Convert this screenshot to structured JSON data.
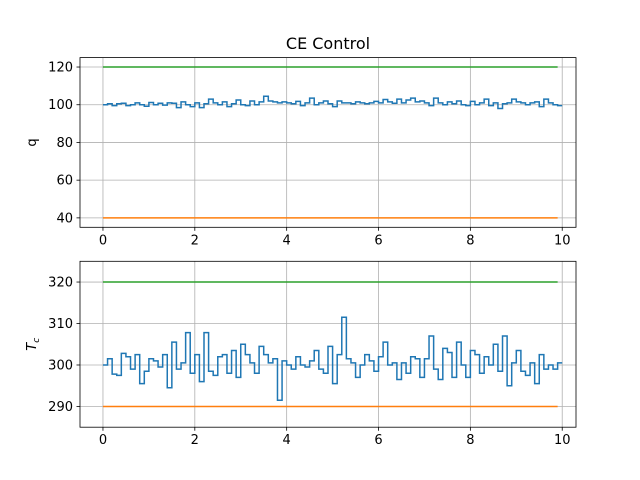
{
  "chart_data": [
    {
      "type": "line",
      "title": "CE Control",
      "xlabel": "",
      "ylabel": "q",
      "xlim": [
        -0.5,
        10.3
      ],
      "ylim": [
        35,
        125
      ],
      "xticks": [
        "0",
        "2",
        "4",
        "6",
        "8",
        "10"
      ],
      "yticks": [
        "40",
        "60",
        "80",
        "100",
        "120"
      ],
      "grid": true,
      "step": true,
      "series": [
        {
          "color": "#1f77b4",
          "x_start": 0,
          "x_step": 0.1,
          "values": [
            100.0,
            100.5,
            99.5,
            100.5,
            100.8,
            99.5,
            100.0,
            101.0,
            100.0,
            99.2,
            101.2,
            100.0,
            100.8,
            99.8,
            101.0,
            100.8,
            98.5,
            101.5,
            100.0,
            99.0,
            101.0,
            98.5,
            100.5,
            103.0,
            101.0,
            100.0,
            101.5,
            99.0,
            100.5,
            102.5,
            100.0,
            99.5,
            102.0,
            100.0,
            101.5,
            104.5,
            102.0,
            101.5,
            101.0,
            101.5,
            101.0,
            100.5,
            101.8,
            99.5,
            101.0,
            103.5,
            100.0,
            101.0,
            102.0,
            100.5,
            99.0,
            102.0,
            101.0,
            101.0,
            100.5,
            101.5,
            101.0,
            100.5,
            101.0,
            101.8,
            101.0,
            102.8,
            101.5,
            100.8,
            103.0,
            101.0,
            102.5,
            103.5,
            101.5,
            102.0,
            101.0,
            99.5,
            103.5,
            101.0,
            100.0,
            101.5,
            100.5,
            102.0,
            100.0,
            99.5,
            101.8,
            100.0,
            101.0,
            103.0,
            99.5,
            101.0,
            98.0,
            100.5,
            101.0,
            103.0,
            101.5,
            101.0,
            100.0,
            101.0,
            101.5,
            99.0,
            103.0,
            101.0,
            100.0,
            99.5
          ]
        },
        {
          "color": "#2ca02c",
          "x_start": 0,
          "x_step": 0.1,
          "constant": 120,
          "count": 99
        },
        {
          "color": "#ff7f0e",
          "x_start": 0,
          "x_step": 0.1,
          "constant": 40,
          "count": 99
        }
      ]
    },
    {
      "type": "line",
      "title": "",
      "xlabel": "",
      "ylabel": "T_c",
      "ylabel_main": "T",
      "ylabel_sub": "c",
      "xlim": [
        -0.5,
        10.3
      ],
      "ylim": [
        285,
        325
      ],
      "xticks": [
        "0",
        "2",
        "4",
        "6",
        "8",
        "10"
      ],
      "yticks": [
        "290",
        "300",
        "310",
        "320"
      ],
      "grid": true,
      "step": true,
      "series": [
        {
          "color": "#1f77b4",
          "x_start": 0,
          "x_step": 0.1,
          "values": [
            300.0,
            301.5,
            297.8,
            297.5,
            302.8,
            302.0,
            299.0,
            302.5,
            295.5,
            298.5,
            301.5,
            301.0,
            299.5,
            302.5,
            294.5,
            305.5,
            299.0,
            300.5,
            307.8,
            298.0,
            302.5,
            296.0,
            307.8,
            298.5,
            297.5,
            302.0,
            302.5,
            298.0,
            303.5,
            297.0,
            305.0,
            302.5,
            300.5,
            298.0,
            304.5,
            302.5,
            300.5,
            301.5,
            291.5,
            301.0,
            300.0,
            299.0,
            302.0,
            300.0,
            299.5,
            301.0,
            303.5,
            299.0,
            298.0,
            304.5,
            295.5,
            302.5,
            311.5,
            301.5,
            300.5,
            297.0,
            300.0,
            302.5,
            301.0,
            298.5,
            302.0,
            305.5,
            300.0,
            300.5,
            296.5,
            300.5,
            298.0,
            302.0,
            301.5,
            297.0,
            301.5,
            307.0,
            299.0,
            296.5,
            304.0,
            303.0,
            297.0,
            305.5,
            300.0,
            297.0,
            303.5,
            302.5,
            298.0,
            302.0,
            300.0,
            305.0,
            298.5,
            307.0,
            295.0,
            300.5,
            303.5,
            298.5,
            297.5,
            300.5,
            295.5,
            302.5,
            299.0,
            300.0,
            299.0,
            300.5
          ]
        },
        {
          "color": "#2ca02c",
          "x_start": 0,
          "x_step": 0.1,
          "constant": 320,
          "count": 99
        },
        {
          "color": "#ff7f0e",
          "x_start": 0,
          "x_step": 0.1,
          "constant": 290,
          "count": 99
        }
      ]
    }
  ]
}
